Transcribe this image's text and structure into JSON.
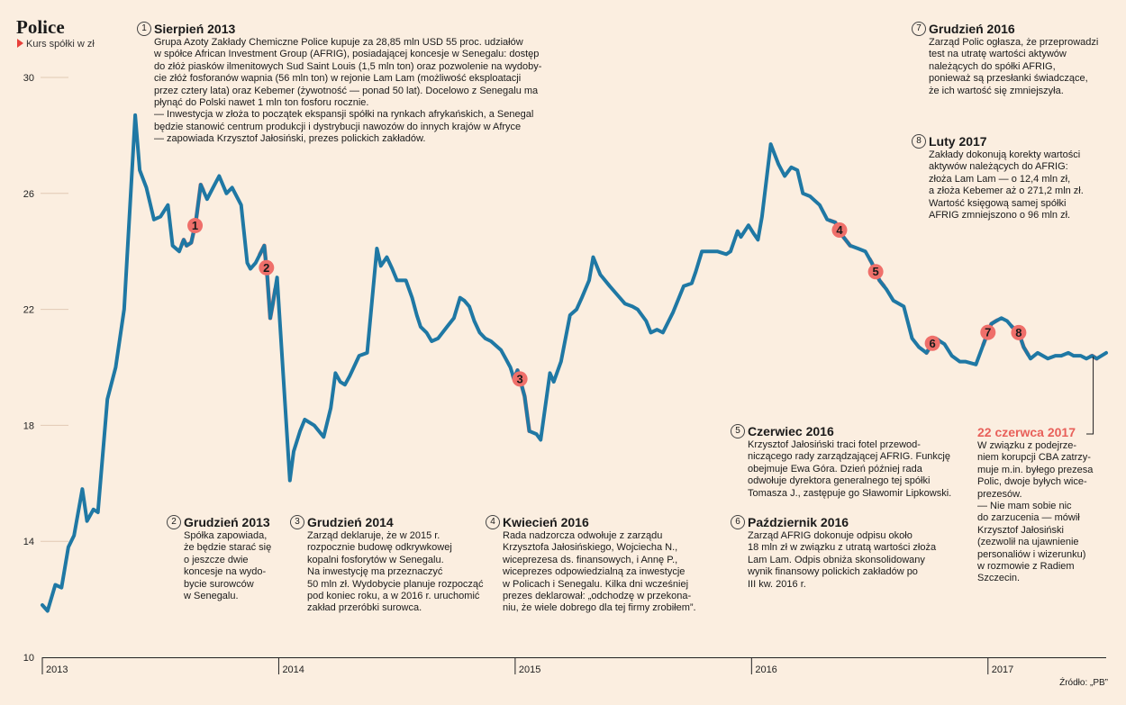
{
  "header": {
    "title": "Police",
    "subtitle": "Kurs spółki w zł"
  },
  "source": "Źródło: „PB”",
  "colors": {
    "line": "#1f78a4",
    "highlight": "#ef6f6a",
    "background": "#fbeee0",
    "grid": "#e2c9b4"
  },
  "chart_data": {
    "type": "line",
    "ylim": [
      10,
      30
    ],
    "yticks": [
      10,
      14,
      18,
      22,
      26,
      30
    ],
    "xlim": [
      0,
      4.5
    ],
    "xticks": [
      {
        "label": "2013",
        "x": 0
      },
      {
        "label": "2014",
        "x": 1
      },
      {
        "label": "2015",
        "x": 2
      },
      {
        "label": "2016",
        "x": 3
      },
      {
        "label": "2017",
        "x": 4
      }
    ],
    "grid": "horizontal",
    "points": [
      [
        0.0,
        11.8
      ],
      [
        0.022,
        11.6
      ],
      [
        0.055,
        12.5
      ],
      [
        0.081,
        12.4
      ],
      [
        0.11,
        13.8
      ],
      [
        0.134,
        14.2
      ],
      [
        0.169,
        15.8
      ],
      [
        0.189,
        14.7
      ],
      [
        0.216,
        15.1
      ],
      [
        0.235,
        15.0
      ],
      [
        0.275,
        18.9
      ],
      [
        0.31,
        20.0
      ],
      [
        0.346,
        22.0
      ],
      [
        0.393,
        28.7
      ],
      [
        0.412,
        26.8
      ],
      [
        0.44,
        26.2
      ],
      [
        0.472,
        25.1
      ],
      [
        0.5,
        25.2
      ],
      [
        0.531,
        25.6
      ],
      [
        0.551,
        24.2
      ],
      [
        0.579,
        24.0
      ],
      [
        0.598,
        24.4
      ],
      [
        0.61,
        24.2
      ],
      [
        0.63,
        24.3
      ],
      [
        0.649,
        25.0
      ],
      [
        0.67,
        26.3
      ],
      [
        0.697,
        25.8
      ],
      [
        0.722,
        26.2
      ],
      [
        0.748,
        26.6
      ],
      [
        0.779,
        26.0
      ],
      [
        0.803,
        26.2
      ],
      [
        0.841,
        25.6
      ],
      [
        0.867,
        23.6
      ],
      [
        0.88,
        23.4
      ],
      [
        0.902,
        23.6
      ],
      [
        0.939,
        24.2
      ],
      [
        0.952,
        23.1
      ],
      [
        0.964,
        21.7
      ],
      [
        0.975,
        22.2
      ],
      [
        0.993,
        23.1
      ],
      [
        1.047,
        16.1
      ],
      [
        1.063,
        17.1
      ],
      [
        1.09,
        17.8
      ],
      [
        1.11,
        18.2
      ],
      [
        1.15,
        18.0
      ],
      [
        1.19,
        17.6
      ],
      [
        1.22,
        18.6
      ],
      [
        1.24,
        19.8
      ],
      [
        1.26,
        19.5
      ],
      [
        1.28,
        19.4
      ],
      [
        1.3,
        19.7
      ],
      [
        1.34,
        20.4
      ],
      [
        1.374,
        20.5
      ],
      [
        1.415,
        24.1
      ],
      [
        1.432,
        23.5
      ],
      [
        1.457,
        23.8
      ],
      [
        1.48,
        23.4
      ],
      [
        1.5,
        23.0
      ],
      [
        1.538,
        23.0
      ],
      [
        1.564,
        22.4
      ],
      [
        1.584,
        21.8
      ],
      [
        1.6,
        21.4
      ],
      [
        1.625,
        21.2
      ],
      [
        1.647,
        20.9
      ],
      [
        1.674,
        21.0
      ],
      [
        1.712,
        21.4
      ],
      [
        1.741,
        21.7
      ],
      [
        1.767,
        22.4
      ],
      [
        1.785,
        22.3
      ],
      [
        1.806,
        22.1
      ],
      [
        1.827,
        21.6
      ],
      [
        1.85,
        21.2
      ],
      [
        1.873,
        21.0
      ],
      [
        1.898,
        20.9
      ],
      [
        1.94,
        20.6
      ],
      [
        1.96,
        20.3
      ],
      [
        1.98,
        20.0
      ],
      [
        1.995,
        19.6
      ],
      [
        2.01,
        19.9
      ],
      [
        2.04,
        19.0
      ],
      [
        2.06,
        17.8
      ],
      [
        2.09,
        17.7
      ],
      [
        2.108,
        17.5
      ],
      [
        2.147,
        19.8
      ],
      [
        2.163,
        19.5
      ],
      [
        2.194,
        20.2
      ],
      [
        2.232,
        21.8
      ],
      [
        2.26,
        22.0
      ],
      [
        2.282,
        22.4
      ],
      [
        2.313,
        23.0
      ],
      [
        2.33,
        23.8
      ],
      [
        2.36,
        23.2
      ],
      [
        2.4,
        22.8
      ],
      [
        2.432,
        22.5
      ],
      [
        2.464,
        22.2
      ],
      [
        2.496,
        22.1
      ],
      [
        2.518,
        22.0
      ],
      [
        2.554,
        21.6
      ],
      [
        2.574,
        21.2
      ],
      [
        2.6,
        21.3
      ],
      [
        2.625,
        21.2
      ],
      [
        2.668,
        21.9
      ],
      [
        2.713,
        22.8
      ],
      [
        2.747,
        22.9
      ],
      [
        2.764,
        23.3
      ],
      [
        2.79,
        24.0
      ],
      [
        2.822,
        24.0
      ],
      [
        2.855,
        24.0
      ],
      [
        2.893,
        23.9
      ],
      [
        2.911,
        24.0
      ],
      [
        2.941,
        24.7
      ],
      [
        2.955,
        24.5
      ],
      [
        2.987,
        24.9
      ],
      [
        3.01,
        24.6
      ],
      [
        3.027,
        24.4
      ],
      [
        3.044,
        25.2
      ],
      [
        3.081,
        27.7
      ],
      [
        3.114,
        27.0
      ],
      [
        3.14,
        26.6
      ],
      [
        3.168,
        26.9
      ],
      [
        3.194,
        26.8
      ],
      [
        3.217,
        26.0
      ],
      [
        3.247,
        25.9
      ],
      [
        3.288,
        25.6
      ],
      [
        3.32,
        25.1
      ],
      [
        3.354,
        25.0
      ],
      [
        3.388,
        24.5
      ],
      [
        3.417,
        24.2
      ],
      [
        3.45,
        24.1
      ],
      [
        3.481,
        24.0
      ],
      [
        3.509,
        23.6
      ],
      [
        3.541,
        23.0
      ],
      [
        3.57,
        22.7
      ],
      [
        3.6,
        22.3
      ],
      [
        3.644,
        22.1
      ],
      [
        3.679,
        21.0
      ],
      [
        3.708,
        20.7
      ],
      [
        3.74,
        20.5
      ],
      [
        3.778,
        21.0
      ],
      [
        3.816,
        20.8
      ],
      [
        3.847,
        20.4
      ],
      [
        3.881,
        20.2
      ],
      [
        3.904,
        20.2
      ],
      [
        3.949,
        20.1
      ],
      [
        3.99,
        21.0
      ],
      [
        4.014,
        21.5
      ],
      [
        4.034,
        21.6
      ],
      [
        4.057,
        21.7
      ],
      [
        4.081,
        21.6
      ],
      [
        4.102,
        21.4
      ],
      [
        4.13,
        21.2
      ],
      [
        4.151,
        20.7
      ],
      [
        4.18,
        20.3
      ],
      [
        4.21,
        20.5
      ],
      [
        4.253,
        20.3
      ],
      [
        4.285,
        20.4
      ],
      [
        4.31,
        20.4
      ],
      [
        4.34,
        20.5
      ],
      [
        4.362,
        20.4
      ],
      [
        4.392,
        20.4
      ],
      [
        4.416,
        20.3
      ],
      [
        4.44,
        20.4
      ],
      [
        4.46,
        20.3
      ],
      [
        4.5,
        20.5
      ]
    ],
    "highlights": [
      {
        "label": "1",
        "x_from": 0.59,
        "x_to": 0.68,
        "marker_x": 0.646
      },
      {
        "label": "2",
        "x_from": 0.92,
        "x_to": 0.985,
        "marker_x": 0.948
      },
      {
        "label": "3",
        "x_from": 1.99,
        "x_to": 2.06,
        "marker_x": 2.02
      },
      {
        "label": "4",
        "x_from": 3.33,
        "x_to": 3.42,
        "marker_x": 3.372
      },
      {
        "label": "5",
        "x_from": 3.5,
        "x_to": 3.56,
        "marker_x": 3.525
      },
      {
        "label": "6",
        "x_from": 3.74,
        "x_to": 3.79,
        "marker_x": 3.765
      },
      {
        "label": "7",
        "x_from": 3.98,
        "x_to": 4.04,
        "marker_x": 4.0
      },
      {
        "label": "8",
        "x_from": 4.1,
        "x_to": 4.17,
        "marker_x": 4.13
      },
      {
        "label": "",
        "x_from": 4.435,
        "x_to": 4.46,
        "marker_x": null
      }
    ]
  },
  "annotations": [
    {
      "num": "1",
      "heading": "Sierpień 2013",
      "body": "Grupa Azoty Zakłady Chemiczne Police kupuje za 28,85 mln USD 55 proc. udziałów\nw spółce African Investment Group (AFRIG), posiadającej koncesje w Senegalu: dostęp\ndo złóż piasków ilmenitowych Sud Saint Louis (1,5 mln ton) oraz pozwolenie na wydoby-\ncie złóż fosforanów wapnia (56 mln ton) w rejonie Lam Lam (możliwość eksploatacji\nprzez cztery lata) oraz Kebemer (żywotność — ponad 50 lat). Docelowo z Senegalu ma\npłynąć do Polski nawet 1 mln ton fosforu rocznie.\n— Inwestycja w złoża to początek ekspansji spółki na rynkach afrykańskich, a Senegal\nbędzie stanowić centrum produkcji i dystrybucji nawozów do innych krajów w Afryce\n— zapowiada Krzysztof Jałosiński, prezes polickich zakładów."
    },
    {
      "num": "2",
      "heading": "Grudzień 2013",
      "body": "Spółka zapowiada,\nże będzie starać się\no jeszcze dwie\nkoncesje na wydo-\nbycie surowców\nw Senegalu."
    },
    {
      "num": "3",
      "heading": "Grudzień 2014",
      "body": "Zarząd deklaruje, że w 2015 r.\nrozpocznie budowę odkrywkowej\nkopalni fosforytów w Senegalu.\nNa inwestycję ma przeznaczyć\n50 mln zł. Wydobycie planuje rozpocząć\npod koniec roku, a w 2016 r. uruchomić\nzakład przeróbki surowca."
    },
    {
      "num": "4",
      "heading": "Kwiecień 2016",
      "body": "Rada nadzorcza odwołuje z zarządu\nKrzysztofa Jałosińskiego, Wojciecha N.,\nwiceprezesa ds. finansowych, i Annę P.,\nwiceprezes odpowiedzialną za inwestycje\nw Policach i Senegalu. Kilka dni wcześniej\nprezes deklarował: „odchodzę w przekona-\nniu, że wiele dobrego dla tej firmy zrobiłem”."
    },
    {
      "num": "5",
      "heading": "Czerwiec 2016",
      "body": "Krzysztof Jałosiński traci fotel przewod-\nniczącego rady zarządzającej AFRIG. Funkcję\nobejmuje Ewa Góra. Dzień później rada\nodwołuje dyrektora generalnego tej spółki\nTomasza J., zastępuje go Sławomir Lipkowski."
    },
    {
      "num": "6",
      "heading": "Październik 2016",
      "body": "Zarząd AFRIG dokonuje odpisu około\n18 mln zł w związku z utratą wartości złoża\nLam Lam. Odpis obniża skonsolidowany\nwynik finansowy polickich zakładów po\nIII kw. 2016 r."
    },
    {
      "num": "7",
      "heading": "Grudzień 2016",
      "body": "Zarząd Polic ogłasza, że przeprowadzi\ntest na utratę wartości aktywów\nnależących do spółki AFRIG,\nponieważ są przesłanki świadczące,\nże ich wartość się zmniejszyła."
    },
    {
      "num": "8",
      "heading": "Luty 2017",
      "body": "Zakłady dokonują korekty wartości\naktywów należących do AFRIG:\nzłoża Lam Lam — o 12,4 mln zł,\na złoża Kebemer aż o 271,2 mln zł.\nWartość księgową samej spółki\nAFRIG zmniejszono o 96 mln zł."
    },
    {
      "num": "",
      "heading": "22 czerwca 2017",
      "body": "W związku z podejrze-\nniem korupcji CBA zatrzy-\nmuje m.in. byłego prezesa\nPolic, dwoje byłych wice-\nprezesów.\n— Nie mam sobie nic\ndo zarzucenia — mówił\nKrzysztof Jałosiński\n(zezwolił na ujawnienie\npersonaliów i wizerunku)\nw rozmowie z Radiem\nSzczecin."
    }
  ]
}
